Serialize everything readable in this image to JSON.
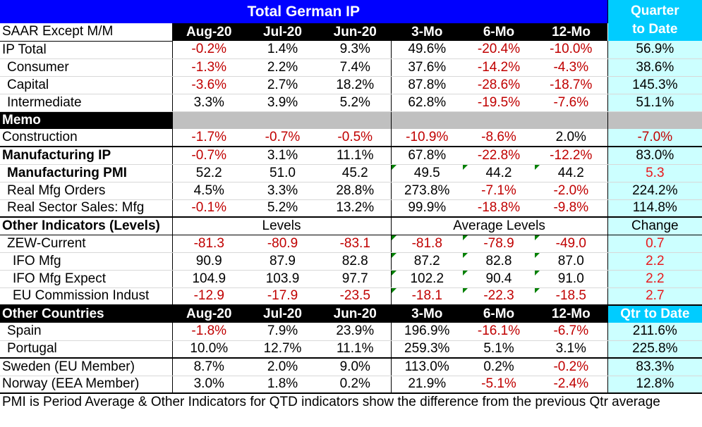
{
  "title": "Total German IP",
  "qtd_header": [
    "Quarter",
    "to Date"
  ],
  "col_headers": {
    "label": "SAAR Except M/M",
    "cols": [
      "Aug-20",
      "Jul-20",
      "Jun-20",
      "3-Mo",
      "6-Mo",
      "12-Mo"
    ]
  },
  "ip_rows": [
    {
      "label": "IP Total",
      "values": [
        "-0.2%",
        "1.4%",
        "9.3%",
        "49.6%",
        "-20.4%",
        "-10.0%"
      ],
      "qtd": "56.9%"
    },
    {
      "label": "Consumer",
      "values": [
        "-1.3%",
        "2.2%",
        "7.4%",
        "37.6%",
        "-14.2%",
        "-4.3%"
      ],
      "qtd": "38.6%"
    },
    {
      "label": "Capital",
      "values": [
        "-3.6%",
        "2.7%",
        "18.2%",
        "87.8%",
        "-28.6%",
        "-18.7%"
      ],
      "qtd": "145.3%"
    },
    {
      "label": "Intermediate",
      "values": [
        "3.3%",
        "3.9%",
        "5.2%",
        "62.8%",
        "-19.5%",
        "-7.6%"
      ],
      "qtd": "51.1%"
    }
  ],
  "memo": {
    "label": "Memo",
    "construction": {
      "label": "Construction",
      "values": [
        "-1.7%",
        "-0.7%",
        "-0.5%",
        "-10.9%",
        "-8.6%",
        "2.0%"
      ],
      "qtd": "-7.0%"
    }
  },
  "mfg_rows": [
    {
      "label": "Manufacturing IP",
      "values": [
        "-0.7%",
        "3.1%",
        "11.1%",
        "67.8%",
        "-22.8%",
        "-12.2%"
      ],
      "qtd": "83.0%"
    },
    {
      "label": "Manufacturing PMI",
      "values": [
        "52.2",
        "51.0",
        "45.2",
        "49.5",
        "44.2",
        "44.2"
      ],
      "qtd": "5.3"
    },
    {
      "label": "Real Mfg Orders",
      "values": [
        "4.5%",
        "3.3%",
        "28.8%",
        "273.8%",
        "-7.1%",
        "-2.0%"
      ],
      "qtd": "224.2%"
    },
    {
      "label": "Real Sector Sales: Mfg",
      "values": [
        "-0.1%",
        "5.2%",
        "13.2%",
        "99.9%",
        "-18.8%",
        "-9.8%"
      ],
      "qtd": "114.8%"
    }
  ],
  "other_indicators": {
    "label": "Other Indicators (Levels)",
    "levels": "Levels",
    "average_levels": "Average Levels",
    "change": "Change",
    "rows": [
      {
        "label": "ZEW-Current",
        "values": [
          "-81.3",
          "-80.9",
          "-83.1",
          "-81.8",
          "-78.9",
          "-49.0"
        ],
        "qtd": "0.7"
      },
      {
        "label": "IFO Mfg",
        "values": [
          "90.9",
          "87.9",
          "82.8",
          "87.2",
          "82.8",
          "87.0"
        ],
        "qtd": "2.2"
      },
      {
        "label": "IFO Mfg Expect",
        "values": [
          "104.9",
          "103.9",
          "97.7",
          "102.2",
          "90.4",
          "91.0"
        ],
        "qtd": "2.2"
      },
      {
        "label": "EU Commission Indust",
        "values": [
          "-12.9",
          "-17.9",
          "-23.5",
          "-18.1",
          "-22.3",
          "-18.5"
        ],
        "qtd": "2.7"
      }
    ]
  },
  "other_countries": {
    "label": "Other Countries",
    "cols": [
      "Aug-20",
      "Jul-20",
      "Jun-20",
      "3-Mo",
      "6-Mo",
      "12-Mo"
    ],
    "qtd_label": "Qtr to Date",
    "rows": [
      {
        "label": "Spain",
        "values": [
          "-1.8%",
          "7.9%",
          "23.9%",
          "196.9%",
          "-16.1%",
          "-6.7%"
        ],
        "qtd": "211.6%"
      },
      {
        "label": "Portugal",
        "values": [
          "10.0%",
          "12.7%",
          "11.1%",
          "259.3%",
          "5.1%",
          "3.1%"
        ],
        "qtd": "225.8%"
      },
      {
        "label": "Sweden (EU Member)",
        "values": [
          "8.7%",
          "2.0%",
          "9.0%",
          "113.0%",
          "0.2%",
          "-0.2%"
        ],
        "qtd": "83.3%"
      },
      {
        "label": "Norway (EEA Member)",
        "values": [
          "3.0%",
          "1.8%",
          "0.2%",
          "21.9%",
          "-5.1%",
          "-2.4%"
        ],
        "qtd": "12.8%"
      }
    ]
  },
  "footnote": "PMI is Period Average & Other Indicators for QTD indicators show the difference from the previous Qtr average"
}
